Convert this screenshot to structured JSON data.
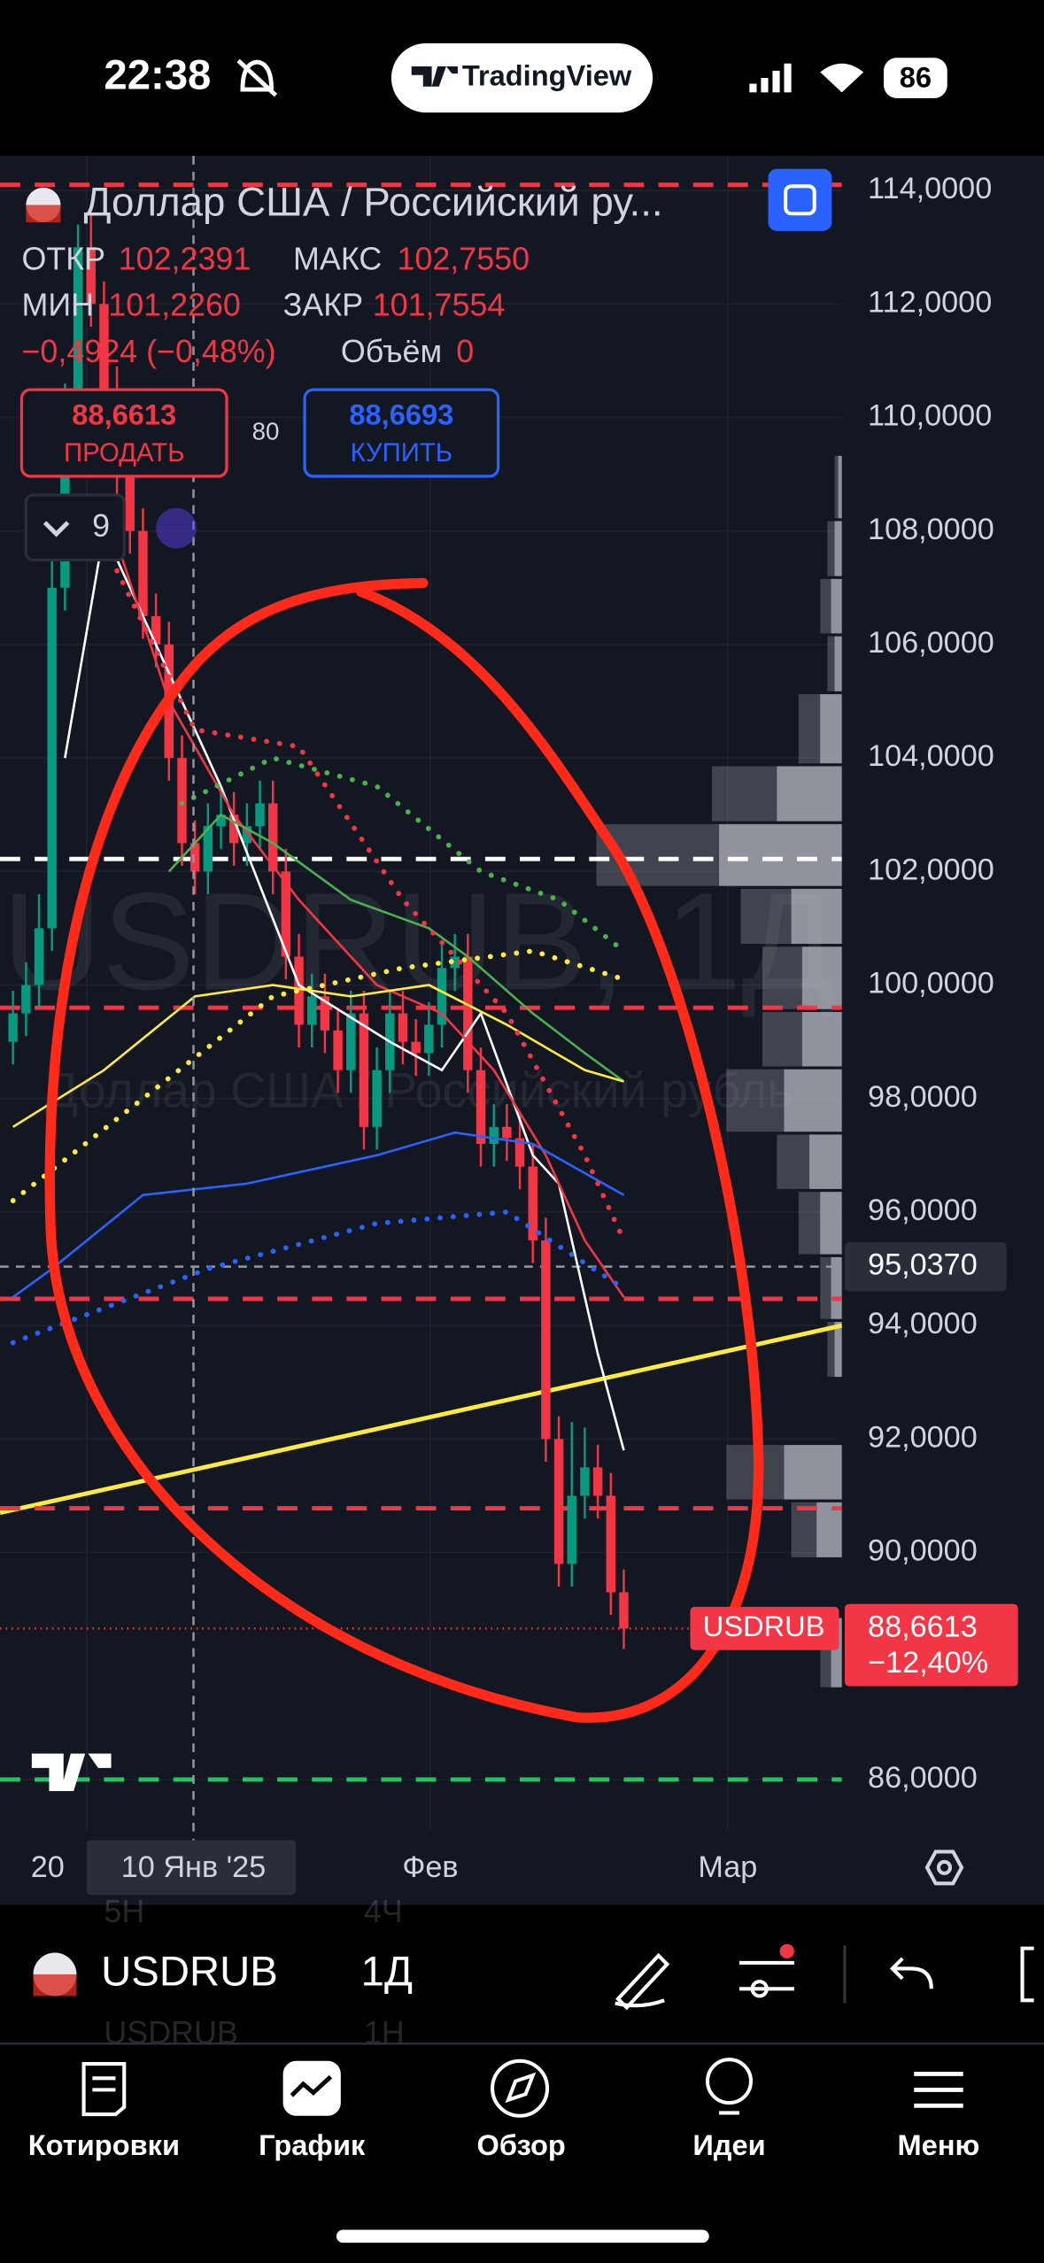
{
  "status_bar": {
    "time": "22:38",
    "app": "TradingView",
    "battery": "86"
  },
  "legend": {
    "title": "Доллар США / Российский ру...",
    "open_label": "ОТКР",
    "open": "102,2391",
    "high_label": "МАКС",
    "high": "102,7550",
    "low_label": "МИН",
    "low": "101,2260",
    "close_label": "ЗАКР",
    "close": "101,7554",
    "change": "−0,4924 (−0,48%)",
    "volume_label": "Объём",
    "volume": "0"
  },
  "trade": {
    "sell_price": "88,6613",
    "sell_label": "ПРОДАТЬ",
    "spread": "80",
    "buy_price": "88,6693",
    "buy_label": "КУПИТЬ"
  },
  "indicator_count": "9",
  "watermark": {
    "symbol": "USDRUB, 1Д",
    "description": "Доллар США / Российский рубль"
  },
  "chart_data": {
    "type": "candlestick",
    "ylim": [
      85.11,
      114.61
    ],
    "yticks": [
      {
        "value": 114,
        "label": "114,0000"
      },
      {
        "value": 112,
        "label": "112,0000"
      },
      {
        "value": 110,
        "label": "110,0000"
      },
      {
        "value": 108,
        "label": "108,0000"
      },
      {
        "value": 106,
        "label": "106,0000"
      },
      {
        "value": 104,
        "label": "104,0000"
      },
      {
        "value": 102,
        "label": "102,0000"
      },
      {
        "value": 100,
        "label": "100,0000"
      },
      {
        "value": 98,
        "label": "98,0000"
      },
      {
        "value": 96,
        "label": "96,0000"
      },
      {
        "value": 94,
        "label": "94,0000"
      },
      {
        "value": 92,
        "label": "92,0000"
      },
      {
        "value": 90,
        "label": "90,0000"
      },
      {
        "value": 86,
        "label": "86,0000"
      }
    ],
    "x_labels": [
      "20",
      "10 Янв '25",
      "Фев",
      "Мар"
    ],
    "up_color": "#089981",
    "down_color": "#f23645",
    "candles": [
      [
        99.0,
        99.9,
        98.6,
        99.5
      ],
      [
        99.5,
        100.4,
        99.1,
        100.0
      ],
      [
        100.0,
        101.6,
        99.6,
        101.0
      ],
      [
        101.0,
        107.5,
        100.6,
        107.0
      ],
      [
        107.0,
        110.6,
        106.6,
        110.0
      ],
      [
        110.0,
        113.4,
        109.6,
        113.0
      ],
      [
        113.0,
        113.6,
        111.6,
        112.0
      ],
      [
        112.0,
        112.4,
        110.1,
        110.5
      ],
      [
        110.5,
        110.9,
        108.6,
        109.0
      ],
      [
        109.0,
        109.4,
        107.6,
        108.0
      ],
      [
        108.0,
        108.4,
        106.1,
        106.5
      ],
      [
        106.5,
        106.9,
        105.6,
        106.0
      ],
      [
        106.0,
        106.4,
        103.6,
        104.0
      ],
      [
        104.0,
        104.4,
        102.1,
        102.5
      ],
      [
        102.5,
        102.9,
        101.6,
        102.0
      ],
      [
        102.0,
        103.2,
        101.6,
        102.8
      ],
      [
        102.8,
        103.4,
        102.4,
        103.0
      ],
      [
        103.0,
        103.4,
        102.1,
        102.5
      ],
      [
        102.5,
        103.2,
        102.1,
        102.8
      ],
      [
        102.8,
        103.6,
        102.4,
        103.2
      ],
      [
        103.2,
        103.6,
        101.6,
        102.0
      ],
      [
        102.0,
        102.4,
        100.1,
        100.5
      ],
      [
        100.5,
        100.9,
        98.9,
        99.3
      ],
      [
        99.3,
        100.2,
        98.9,
        99.8
      ],
      [
        99.8,
        100.2,
        98.8,
        99.2
      ],
      [
        99.2,
        99.6,
        98.1,
        98.5
      ],
      [
        98.5,
        99.9,
        98.1,
        99.5
      ],
      [
        99.5,
        99.9,
        97.1,
        97.5
      ],
      [
        97.5,
        98.9,
        97.1,
        98.5
      ],
      [
        98.5,
        99.9,
        98.1,
        99.5
      ],
      [
        99.5,
        99.9,
        98.6,
        99.0
      ],
      [
        99.0,
        99.4,
        98.4,
        98.8
      ],
      [
        98.8,
        99.7,
        98.4,
        99.3
      ],
      [
        99.3,
        100.7,
        98.9,
        100.3
      ],
      [
        100.3,
        100.9,
        99.9,
        100.5
      ],
      [
        100.5,
        100.9,
        98.1,
        98.5
      ],
      [
        98.5,
        98.9,
        96.8,
        97.2
      ],
      [
        97.2,
        97.9,
        96.8,
        97.5
      ],
      [
        97.5,
        97.9,
        96.9,
        97.3
      ],
      [
        97.3,
        97.7,
        96.4,
        96.8
      ],
      [
        96.8,
        97.2,
        95.1,
        95.5
      ],
      [
        95.5,
        95.9,
        91.6,
        92.0
      ],
      [
        92.0,
        92.4,
        89.4,
        89.8
      ],
      [
        89.8,
        92.3,
        89.4,
        91.0
      ],
      [
        91.0,
        92.2,
        90.6,
        91.5
      ],
      [
        91.5,
        91.9,
        90.6,
        91.0
      ],
      [
        91.0,
        91.4,
        88.9,
        89.3
      ],
      [
        89.3,
        89.7,
        88.3,
        88.66
      ]
    ],
    "indicators": [
      {
        "color": "#ffffff",
        "style": "solid",
        "x_index": [
          4,
          7,
          11,
          16,
          22,
          29,
          33,
          36,
          40,
          42,
          45,
          47
        ],
        "values": [
          104,
          108,
          106,
          103.5,
          100,
          99,
          98.5,
          99.5,
          97,
          96.5,
          93.5,
          91.8
        ]
      },
      {
        "color": "#f23645",
        "style": "solid",
        "x_index": [
          7,
          12,
          17,
          22,
          28,
          33,
          37,
          41,
          44,
          47
        ],
        "values": [
          108.5,
          105,
          103,
          101.5,
          100,
          99.5,
          98.5,
          97,
          95.5,
          94.5
        ]
      },
      {
        "color": "#4caf50",
        "style": "solid",
        "x_index": [
          12,
          16,
          20,
          26,
          32,
          35,
          40,
          44,
          47
        ],
        "values": [
          102,
          103,
          102.5,
          101.5,
          101,
          100.5,
          99.5,
          98.8,
          98.3
        ]
      },
      {
        "color": "#ffeb3b",
        "style": "solid",
        "x_index": [
          0,
          7,
          14,
          20,
          26,
          32,
          38,
          44,
          47
        ],
        "values": [
          97.5,
          98.5,
          99.8,
          100,
          99.8,
          100,
          99.3,
          98.5,
          98.3
        ]
      },
      {
        "color": "#2962ff",
        "style": "solid",
        "x_index": [
          0,
          3,
          10,
          18,
          28,
          34,
          40,
          47
        ],
        "values": [
          94.5,
          95,
          96.3,
          96.5,
          97,
          97.4,
          97.2,
          96.3
        ]
      },
      {
        "color": "#4caf50",
        "style": "dotted",
        "x_index": [
          13,
          20,
          28,
          36,
          42,
          47
        ],
        "values": [
          103.2,
          104,
          103.5,
          102,
          101.5,
          100.6
        ]
      },
      {
        "color": "#ffeb3b",
        "style": "dotted",
        "x_index": [
          0,
          10,
          20,
          30,
          40,
          47
        ],
        "values": [
          96.2,
          98,
          99.8,
          100.3,
          100.6,
          100.1
        ]
      },
      {
        "color": "#2962ff",
        "style": "dotted",
        "x_index": [
          0,
          15,
          28,
          38,
          47
        ],
        "values": [
          93.7,
          95,
          95.8,
          96,
          94.65
        ]
      },
      {
        "color": "#f23645",
        "style": "dotted",
        "x_index": [
          8,
          14,
          22,
          30,
          38,
          44,
          47
        ],
        "values": [
          107.3,
          104.5,
          104.2,
          101.5,
          99.5,
          97,
          95.5
        ]
      }
    ],
    "levels": [
      {
        "value": 114.1,
        "color": "#f23645"
      },
      {
        "value": 102.22,
        "color": "#ffffff"
      },
      {
        "value": 99.6,
        "color": "#f23645"
      },
      {
        "value": 94.47,
        "color": "#f23645"
      },
      {
        "value": 90.78,
        "color": "#f23645"
      },
      {
        "value": 86,
        "color": "#22c55e"
      }
    ],
    "trendline": {
      "color": "#ffeb3b",
      "values": [
        90.7,
        94.0
      ]
    },
    "volume_profile": [
      {
        "low": 108.2,
        "high": 109.35,
        "volume": 5
      },
      {
        "low": 107.18,
        "high": 108.2,
        "volume": 10
      },
      {
        "low": 106.17,
        "high": 107.18,
        "volume": 15
      },
      {
        "low": 105.15,
        "high": 106.17,
        "volume": 10
      },
      {
        "low": 103.88,
        "high": 105.15,
        "volume": 30
      },
      {
        "low": 102.86,
        "high": 103.88,
        "volume": 90
      },
      {
        "low": 101.72,
        "high": 102.86,
        "volume": 170
      },
      {
        "low": 100.7,
        "high": 101.72,
        "volume": 70
      },
      {
        "low": 99.55,
        "high": 100.7,
        "volume": 55
      },
      {
        "low": 98.54,
        "high": 99.55,
        "volume": 55
      },
      {
        "low": 97.39,
        "high": 98.54,
        "volume": 80
      },
      {
        "low": 96.38,
        "high": 97.39,
        "volume": 45
      },
      {
        "low": 95.23,
        "high": 96.38,
        "volume": 30
      },
      {
        "low": 94.09,
        "high": 95.23,
        "volume": 15
      },
      {
        "low": 93.07,
        "high": 94.09,
        "volume": 10
      },
      {
        "low": 90.91,
        "high": 91.92,
        "volume": 80
      },
      {
        "low": 89.89,
        "high": 90.91,
        "volume": 35
      },
      {
        "low": 87.6,
        "high": 88.87,
        "volume": 15
      }
    ],
    "crosshair": {
      "value": 95.037,
      "label": "95,0370"
    },
    "last_price": {
      "symbol": "USDRUB",
      "value": 88.6613,
      "label": "88,6613",
      "change": "−12,40%"
    }
  },
  "toolbar": {
    "symbol": "USDRUB",
    "interval": "1Д",
    "ghost": [
      "5Н",
      "4Ч",
      "USDRUB",
      "1Н"
    ]
  },
  "tabs": [
    "Котировки",
    "График",
    "Обзор",
    "Идеи",
    "Меню"
  ]
}
